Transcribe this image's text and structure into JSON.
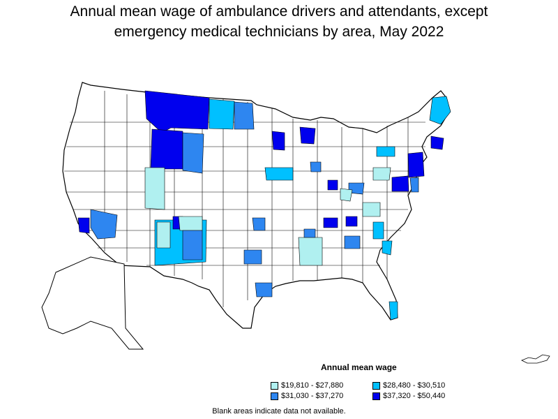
{
  "title": {
    "line1": "Annual mean wage of ambulance drivers and attendants, except",
    "line2": "emergency medical technicians by area, May 2022"
  },
  "legend": {
    "title": "Annual mean wage",
    "items": [
      {
        "label": "$19,810 - $27,880",
        "color": "#b0f0f0"
      },
      {
        "label": "$28,480 - $30,510",
        "color": "#00c0ff"
      },
      {
        "label": "$31,030 - $37,270",
        "color": "#2e86f0"
      },
      {
        "label": "$37,320 - $50,440",
        "color": "#0000ee"
      }
    ]
  },
  "note": "Blank areas indicate data not available.",
  "colors": {
    "outline": "#000000",
    "blank": "#ffffff"
  }
}
